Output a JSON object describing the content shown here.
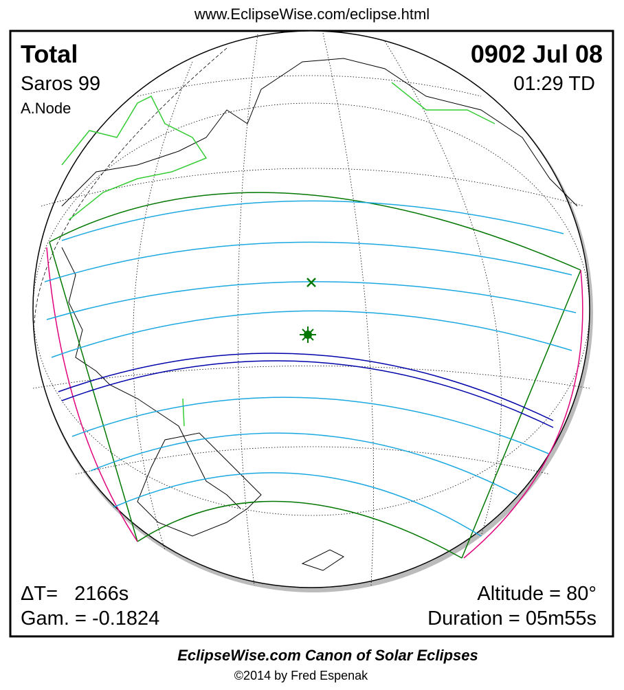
{
  "header": {
    "url": "www.EclipseWise.com/eclipse.html"
  },
  "eclipse": {
    "type": "Total",
    "saros": "Saros  99",
    "node": "A.Node",
    "date": "0902 Jul 08",
    "time": "01:29 TD",
    "delta_t": "ΔT=   2166s",
    "gamma": "Gam. = -0.1824",
    "altitude": "Altitude = 80°",
    "duration": "Duration = 05m55s"
  },
  "footer": {
    "title": "EclipseWise.com Canon of Solar Eclipses",
    "copyright": "©2014 by Fred Espenak"
  }
}
